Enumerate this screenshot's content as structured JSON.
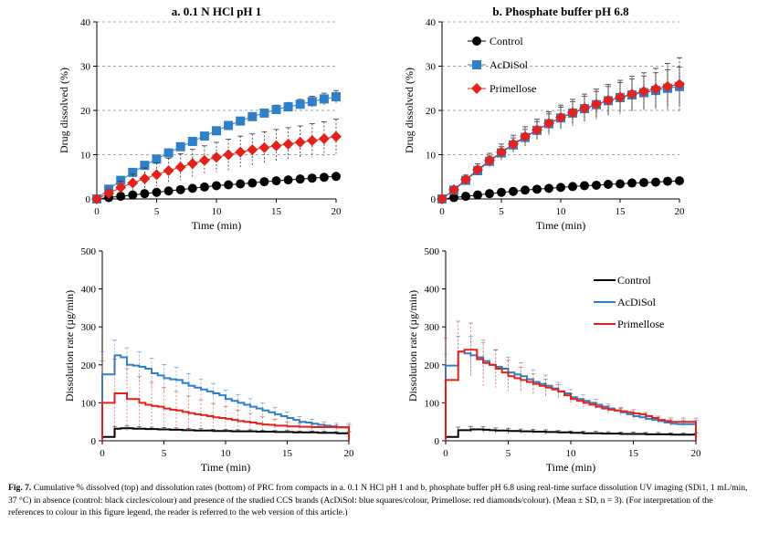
{
  "colors": {
    "control": "#000000",
    "acdisol": "#2f7fc9",
    "primellose": "#e3221b"
  },
  "chart_data": [
    {
      "type": "scatter",
      "title": "a. 0.1 N HCl pH 1",
      "xlabel": "Time (min)",
      "ylabel": "Drug dissolved (%)",
      "xlim": [
        0,
        20
      ],
      "ylim": [
        0,
        40
      ],
      "xticks": [
        "0",
        "5",
        "10",
        "15",
        "20"
      ],
      "yticks": [
        "0",
        "10",
        "20",
        "30",
        "40"
      ],
      "grid": true,
      "x": [
        0,
        1,
        2,
        3,
        4,
        5,
        6,
        7,
        8,
        9,
        10,
        11,
        12,
        13,
        14,
        15,
        16,
        17,
        18,
        19,
        20
      ],
      "series": [
        {
          "name": "Control",
          "marker": "circle",
          "values": [
            0,
            0.3,
            0.6,
            0.9,
            1.2,
            1.5,
            1.8,
            2.1,
            2.4,
            2.7,
            3.0,
            3.2,
            3.4,
            3.6,
            3.9,
            4.1,
            4.3,
            4.5,
            4.7,
            4.9,
            5.1
          ],
          "err": [
            0,
            0.1,
            0.1,
            0.1,
            0.1,
            0.1,
            0.2,
            0.2,
            0.2,
            0.2,
            0.2,
            0.2,
            0.2,
            0.2,
            0.2,
            0.2,
            0.2,
            0.2,
            0.2,
            0.2,
            0.2
          ]
        },
        {
          "name": "AcDiSol",
          "marker": "square",
          "values": [
            0,
            2.2,
            4.2,
            6.0,
            7.6,
            9.0,
            10.4,
            11.8,
            13.0,
            14.2,
            15.4,
            16.6,
            17.6,
            18.6,
            19.4,
            20.2,
            20.8,
            21.4,
            22.0,
            22.6,
            23.1
          ],
          "err": [
            0,
            0.3,
            0.4,
            0.5,
            0.5,
            0.6,
            0.6,
            0.7,
            0.7,
            0.7,
            0.8,
            0.8,
            0.8,
            0.9,
            0.9,
            1.0,
            1.0,
            1.1,
            1.2,
            1.3,
            1.4
          ]
        },
        {
          "name": "Primellose",
          "marker": "diamond",
          "values": [
            0,
            1.3,
            2.6,
            3.6,
            4.6,
            5.5,
            6.4,
            7.2,
            8.0,
            8.7,
            9.4,
            10.0,
            10.6,
            11.1,
            11.6,
            12.0,
            12.4,
            12.8,
            13.2,
            13.6,
            14.1
          ],
          "err": [
            0,
            0.8,
            1.4,
            2.0,
            2.4,
            2.6,
            2.8,
            3.0,
            3.2,
            3.3,
            3.4,
            3.5,
            3.6,
            3.6,
            3.6,
            3.7,
            3.7,
            3.7,
            3.8,
            3.8,
            3.9
          ]
        }
      ]
    },
    {
      "type": "scatter",
      "title": "b. Phosphate buffer pH 6.8",
      "xlabel": "Time (min)",
      "ylabel": "Drug dissolved (%)",
      "xlim": [
        0,
        20
      ],
      "ylim": [
        0,
        40
      ],
      "xticks": [
        "0",
        "5",
        "10",
        "15",
        "20"
      ],
      "yticks": [
        "0",
        "10",
        "20",
        "30",
        "40"
      ],
      "grid": true,
      "legend": "top-left",
      "x": [
        0,
        1,
        2,
        3,
        4,
        5,
        6,
        7,
        8,
        9,
        10,
        11,
        12,
        13,
        14,
        15,
        16,
        17,
        18,
        19,
        20
      ],
      "series": [
        {
          "name": "Control",
          "marker": "circle",
          "values": [
            0,
            0.3,
            0.6,
            0.9,
            1.2,
            1.5,
            1.7,
            2.0,
            2.2,
            2.4,
            2.6,
            2.8,
            3.0,
            3.1,
            3.3,
            3.4,
            3.6,
            3.7,
            3.8,
            4.0,
            4.1
          ],
          "err": [
            0,
            0.1,
            0.1,
            0.1,
            0.1,
            0.1,
            0.1,
            0.1,
            0.1,
            0.1,
            0.2,
            0.2,
            0.2,
            0.2,
            0.2,
            0.2,
            0.2,
            0.2,
            0.2,
            0.2,
            0.2
          ]
        },
        {
          "name": "AcDiSol",
          "marker": "square",
          "values": [
            0,
            2.0,
            4.2,
            6.4,
            8.5,
            10.4,
            12.2,
            13.9,
            15.5,
            17.0,
            18.3,
            19.4,
            20.4,
            21.3,
            22.2,
            22.9,
            23.5,
            24.0,
            24.5,
            25.0,
            25.4
          ],
          "err": [
            0,
            0.5,
            0.8,
            1.0,
            1.2,
            1.4,
            1.6,
            1.8,
            2.0,
            2.2,
            2.4,
            2.6,
            2.8,
            3.0,
            3.2,
            3.4,
            3.6,
            3.8,
            4.0,
            4.2,
            4.4
          ]
        },
        {
          "name": "Primellose",
          "marker": "diamond",
          "values": [
            0,
            2.1,
            4.4,
            6.6,
            8.7,
            10.6,
            12.4,
            14.1,
            15.6,
            17.1,
            18.4,
            19.5,
            20.5,
            21.4,
            22.3,
            23.0,
            23.7,
            24.3,
            24.9,
            25.4,
            25.9
          ],
          "err": [
            0,
            0.6,
            1.0,
            1.3,
            1.6,
            1.8,
            2.0,
            2.2,
            2.4,
            2.6,
            2.8,
            3.0,
            3.2,
            3.4,
            3.6,
            3.8,
            4.0,
            4.2,
            4.6,
            5.2,
            6.0
          ]
        }
      ]
    },
    {
      "type": "line",
      "title": "",
      "xlabel": "Time (min)",
      "ylabel": "Dissolution rate (µg/min)",
      "xlim": [
        0,
        20
      ],
      "ylim": [
        0,
        500
      ],
      "xticks": [
        "0",
        "5",
        "10",
        "15",
        "20"
      ],
      "yticks": [
        "0",
        "100",
        "200",
        "300",
        "400",
        "500"
      ],
      "grid": false,
      "x": [
        0,
        0.5,
        1,
        1.5,
        2,
        2.5,
        3,
        3.5,
        4,
        4.5,
        5,
        5.5,
        6,
        6.5,
        7,
        7.5,
        8,
        8.5,
        9,
        9.5,
        10,
        10.5,
        11,
        11.5,
        12,
        12.5,
        13,
        13.5,
        14,
        14.5,
        15,
        15.5,
        16,
        16.5,
        17,
        17.5,
        18,
        18.5,
        19,
        19.5,
        20
      ],
      "series": [
        {
          "name": "Control",
          "values": [
            10,
            10,
            32,
            33,
            33,
            32,
            32,
            31,
            31,
            30,
            30,
            29,
            29,
            28,
            28,
            27,
            27,
            27,
            26,
            26,
            26,
            25,
            25,
            25,
            25,
            24,
            24,
            24,
            23,
            23,
            23,
            22,
            22,
            22,
            22,
            21,
            21,
            21,
            20,
            20,
            20
          ],
          "err": [
            0,
            0,
            6,
            6,
            6,
            6,
            5,
            5,
            5,
            5,
            5,
            5,
            5,
            5,
            5,
            5,
            5,
            4,
            4,
            4,
            4,
            4,
            4,
            4,
            4,
            4,
            4,
            4,
            4,
            4,
            4,
            4,
            4,
            4,
            4,
            4,
            4,
            4,
            4,
            4,
            4
          ]
        },
        {
          "name": "AcDiSol",
          "values": [
            175,
            175,
            225,
            220,
            200,
            198,
            195,
            190,
            178,
            172,
            165,
            162,
            160,
            152,
            145,
            140,
            135,
            130,
            125,
            120,
            110,
            105,
            100,
            95,
            90,
            85,
            80,
            75,
            70,
            65,
            60,
            55,
            50,
            48,
            45,
            42,
            40,
            38,
            36,
            36,
            36
          ],
          "err": [
            60,
            60,
            40,
            40,
            45,
            45,
            40,
            40,
            40,
            38,
            36,
            35,
            34,
            33,
            32,
            30,
            28,
            27,
            26,
            25,
            24,
            23,
            22,
            22,
            21,
            20,
            20,
            19,
            18,
            17,
            16,
            15,
            14,
            13,
            12,
            11,
            10,
            10,
            10,
            10,
            10
          ]
        },
        {
          "name": "Primellose",
          "values": [
            100,
            100,
            125,
            125,
            110,
            110,
            100,
            95,
            92,
            90,
            85,
            82,
            80,
            76,
            73,
            70,
            68,
            65,
            62,
            60,
            58,
            55,
            52,
            50,
            48,
            45,
            43,
            42,
            40,
            40,
            38,
            38,
            37,
            37,
            36,
            36,
            36,
            36,
            35,
            35,
            35
          ],
          "err": [
            110,
            110,
            90,
            85,
            80,
            75,
            70,
            65,
            62,
            58,
            55,
            52,
            50,
            48,
            45,
            42,
            40,
            38,
            36,
            34,
            32,
            30,
            28,
            26,
            24,
            22,
            20,
            18,
            16,
            14,
            12,
            10,
            9,
            8,
            7,
            6,
            6,
            6,
            6,
            6,
            6
          ]
        }
      ]
    },
    {
      "type": "line",
      "title": "",
      "xlabel": "Time (min)",
      "ylabel": "Dissolution rate (µg/min)",
      "xlim": [
        0,
        20
      ],
      "ylim": [
        0,
        500
      ],
      "xticks": [
        "0",
        "5",
        "10",
        "15",
        "20"
      ],
      "yticks": [
        "0",
        "100",
        "200",
        "300",
        "400",
        "500"
      ],
      "grid": false,
      "legend": "top-right",
      "x": [
        0,
        0.5,
        1,
        1.5,
        2,
        2.5,
        3,
        3.5,
        4,
        4.5,
        5,
        5.5,
        6,
        6.5,
        7,
        7.5,
        8,
        8.5,
        9,
        9.5,
        10,
        10.5,
        11,
        11.5,
        12,
        12.5,
        13,
        13.5,
        14,
        14.5,
        15,
        15.5,
        16,
        16.5,
        17,
        17.5,
        18,
        18.5,
        19,
        19.5,
        20
      ],
      "series": [
        {
          "name": "Control",
          "values": [
            10,
            10,
            28,
            28,
            30,
            30,
            29,
            28,
            27,
            27,
            26,
            26,
            25,
            25,
            24,
            24,
            23,
            23,
            22,
            22,
            21,
            21,
            20,
            20,
            20,
            19,
            19,
            19,
            18,
            18,
            18,
            18,
            17,
            17,
            17,
            17,
            16,
            16,
            16,
            16,
            16
          ],
          "err": [
            0,
            0,
            8,
            8,
            8,
            8,
            8,
            7,
            7,
            7,
            7,
            6,
            6,
            6,
            6,
            6,
            6,
            5,
            5,
            5,
            5,
            5,
            5,
            5,
            5,
            5,
            5,
            5,
            5,
            5,
            5,
            5,
            5,
            5,
            5,
            5,
            5,
            5,
            5,
            5,
            5
          ]
        },
        {
          "name": "AcDiSol",
          "values": [
            198,
            198,
            235,
            230,
            225,
            220,
            210,
            200,
            195,
            190,
            180,
            175,
            170,
            162,
            155,
            150,
            145,
            138,
            130,
            125,
            115,
            110,
            105,
            100,
            95,
            90,
            85,
            80,
            75,
            70,
            65,
            62,
            58,
            55,
            52,
            48,
            45,
            44,
            44,
            44,
            44
          ],
          "err": [
            30,
            30,
            40,
            45,
            50,
            50,
            48,
            46,
            44,
            42,
            40,
            38,
            36,
            34,
            32,
            30,
            28,
            26,
            24,
            22,
            20,
            18,
            16,
            15,
            14,
            13,
            12,
            11,
            10,
            10,
            10,
            10,
            10,
            10,
            10,
            10,
            10,
            10,
            10,
            10,
            10
          ]
        },
        {
          "name": "Primellose",
          "values": [
            160,
            160,
            235,
            240,
            240,
            215,
            205,
            200,
            190,
            180,
            170,
            165,
            160,
            155,
            150,
            145,
            140,
            135,
            130,
            120,
            110,
            105,
            100,
            95,
            90,
            85,
            82,
            80,
            78,
            75,
            72,
            70,
            65,
            60,
            55,
            52,
            50,
            50,
            50,
            50,
            50
          ],
          "err": [
            110,
            110,
            80,
            75,
            70,
            65,
            60,
            55,
            50,
            46,
            42,
            38,
            34,
            30,
            27,
            24,
            22,
            20,
            18,
            16,
            14,
            12,
            11,
            10,
            10,
            10,
            10,
            10,
            10,
            10,
            10,
            10,
            10,
            10,
            10,
            10,
            10,
            10,
            10,
            10,
            10
          ]
        }
      ]
    }
  ],
  "caption": {
    "fig_label": "Fig. 7.",
    "text": "Cumulative % dissolved (top) and dissolution rates (bottom) of PRC from compacts in a. 0.1 N HCl pH 1 and b. phosphate buffer pH 6.8 using real-time surface dissolution UV imaging (SDi1, 1 mL/min, 37 °C) in absence (control: black circles/colour) and presence of the studied CCS brands (AcDiSol: blue squares/colour, Primellose: red diamonds/colour). (Mean ± SD, n = 3). (For interpretation of the references to colour in this figure legend, the reader is referred to the web version of this article.)"
  }
}
